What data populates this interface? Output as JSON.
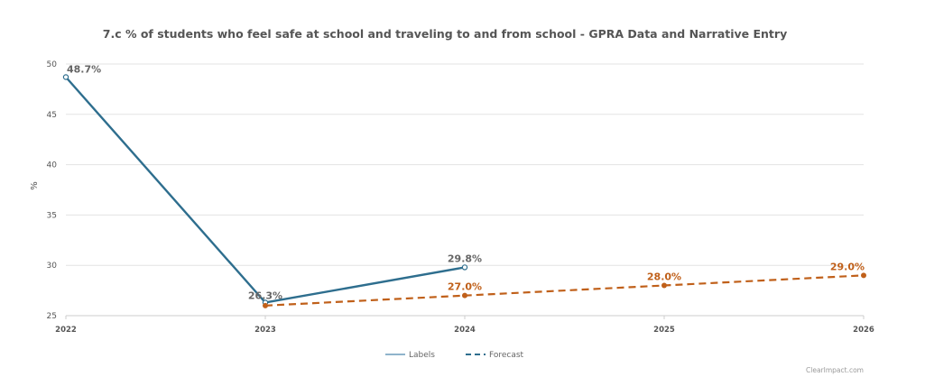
{
  "chart_data": {
    "type": "line",
    "title": "7.c % of students who feel safe at school and traveling to and from school - GPRA Data and Narrative Entry",
    "xlabel": "",
    "ylabel": "%",
    "categories": [
      "2022",
      "2023",
      "2024",
      "2025",
      "2026"
    ],
    "ylim": [
      25,
      50
    ],
    "yticks": [
      "25",
      "30",
      "35",
      "40",
      "45",
      "50"
    ],
    "grid": true,
    "series": [
      {
        "name": "Labels",
        "color": "#2e6e8e",
        "style": "solid",
        "points": [
          {
            "x": "2022",
            "y": 48.7,
            "label": "48.7%"
          },
          {
            "x": "2023",
            "y": 26.3,
            "label": "26.3%"
          },
          {
            "x": "2024",
            "y": 29.8,
            "label": "29.8%"
          }
        ]
      },
      {
        "name": "Forecast",
        "color": "#c0601a",
        "style": "dashed",
        "points": [
          {
            "x": "2023",
            "y": 26.0,
            "label": ""
          },
          {
            "x": "2024",
            "y": 27.0,
            "label": "27.0%"
          },
          {
            "x": "2025",
            "y": 28.0,
            "label": "28.0%"
          },
          {
            "x": "2026",
            "y": 29.0,
            "label": "29.0%"
          }
        ]
      }
    ],
    "legend_position": "bottom-center",
    "credit": "ClearImpact.com"
  }
}
